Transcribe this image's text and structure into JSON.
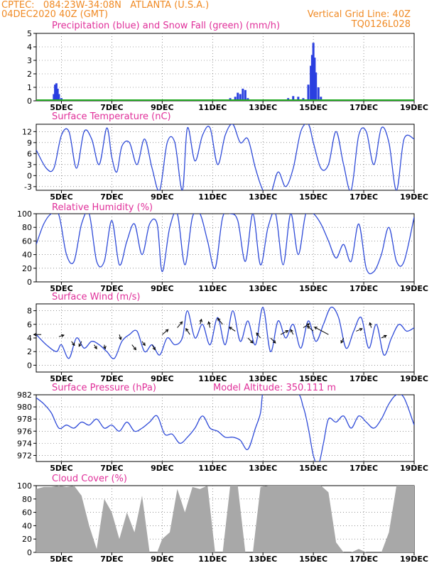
{
  "header": {
    "line1": "CPTEC:   084:23W-34:08N   ATLANTA (U.S.A.)",
    "line2": "04DEC2020 40Z (GMT)",
    "grid_note": "Vertical Grid Line: 40Z",
    "code": "TQ0126L028"
  },
  "x_axis": {
    "start_day": 4,
    "end_day": 19,
    "tick_labels": [
      "5DEC",
      "7DEC",
      "9DEC",
      "11DEC",
      "13DEC",
      "15DEC",
      "17DEC",
      "19DEC"
    ],
    "tick_days": [
      5,
      7,
      9,
      11,
      13,
      15,
      17,
      19
    ]
  },
  "colors": {
    "title": "#e0309a",
    "header": "#f08a24",
    "line": "#2f4bd8",
    "precip_bar": "#2a3fe0",
    "snow": "#22aa22",
    "cloud_fill": "#a8a8a8",
    "wind_arrow": "#000000"
  },
  "chart_data": [
    {
      "type": "bar",
      "title": "Precipitation (blue) and Snow Fall (green) (mm/h)",
      "ylim": [
        0,
        5
      ],
      "yticks": [
        0,
        1,
        2,
        3,
        4,
        5
      ],
      "series": [
        {
          "name": "Precipitation",
          "x": [
            4.6,
            4.7,
            4.75,
            4.8,
            4.85,
            4.9,
            5.0,
            11.7,
            11.9,
            12.0,
            12.1,
            12.2,
            12.3,
            12.4,
            14.0,
            14.2,
            14.4,
            14.6,
            14.8,
            14.9,
            14.95,
            15.0,
            15.05,
            15.1,
            15.2,
            15.3
          ],
          "values": [
            0.1,
            0.5,
            1.2,
            1.3,
            0.9,
            0.5,
            0.2,
            0.2,
            0.3,
            0.6,
            0.5,
            0.9,
            0.8,
            0.2,
            0.2,
            0.35,
            0.3,
            0.2,
            1.2,
            2.6,
            3.4,
            4.3,
            3.2,
            2.1,
            1.0,
            0.3
          ]
        },
        {
          "name": "Snow Fall",
          "x": [],
          "values": []
        }
      ]
    },
    {
      "type": "line",
      "title": "Surface Temperature (nC)",
      "ylim": [
        -4,
        14
      ],
      "yticks": [
        -3,
        0,
        3,
        6,
        9,
        12
      ],
      "x": [
        4.0,
        4.4,
        4.7,
        5.0,
        5.3,
        5.6,
        5.9,
        6.2,
        6.5,
        6.8,
        7.0,
        7.2,
        7.4,
        7.7,
        8.0,
        8.3,
        8.6,
        8.9,
        9.2,
        9.5,
        9.8,
        10.0,
        10.3,
        10.6,
        10.9,
        11.2,
        11.5,
        11.8,
        12.1,
        12.4,
        12.7,
        13.0,
        13.3,
        13.6,
        13.9,
        14.2,
        14.5,
        14.8,
        15.0,
        15.3,
        15.6,
        15.9,
        16.2,
        16.5,
        16.8,
        17.1,
        17.4,
        17.7,
        18.0,
        18.3,
        18.6,
        19.0
      ],
      "values": [
        7,
        2,
        2,
        11,
        12,
        2,
        12,
        10,
        3,
        13,
        5,
        1,
        8,
        9,
        3,
        10,
        2,
        -4,
        9,
        9,
        -4,
        13,
        4,
        11,
        13,
        3,
        11,
        14,
        9,
        10,
        2,
        -4,
        -5,
        1,
        -3,
        2,
        12,
        14,
        9,
        2,
        3,
        12,
        3,
        -4,
        11,
        12,
        3,
        13,
        9,
        -4,
        10,
        10
      ]
    },
    {
      "type": "line",
      "title": "Relative Humidity (%)",
      "ylim": [
        0,
        100
      ],
      "yticks": [
        0,
        20,
        40,
        60,
        80,
        100
      ],
      "x": [
        4.0,
        4.3,
        4.6,
        4.9,
        5.2,
        5.5,
        5.8,
        6.1,
        6.4,
        6.7,
        7.0,
        7.3,
        7.6,
        7.9,
        8.2,
        8.5,
        8.8,
        9.0,
        9.3,
        9.6,
        9.9,
        10.2,
        10.5,
        10.8,
        11.1,
        11.4,
        11.7,
        12.0,
        12.3,
        12.6,
        12.9,
        13.2,
        13.5,
        13.8,
        14.1,
        14.4,
        14.7,
        15.0,
        15.3,
        15.6,
        15.9,
        16.2,
        16.5,
        16.8,
        17.1,
        17.4,
        17.7,
        18.0,
        18.3,
        18.6,
        19.0
      ],
      "values": [
        55,
        85,
        100,
        98,
        40,
        30,
        85,
        100,
        30,
        30,
        90,
        25,
        60,
        85,
        40,
        85,
        85,
        15,
        80,
        100,
        25,
        95,
        100,
        60,
        20,
        95,
        100,
        90,
        30,
        100,
        25,
        80,
        100,
        25,
        100,
        40,
        100,
        100,
        85,
        60,
        35,
        55,
        30,
        85,
        20,
        15,
        40,
        80,
        30,
        30,
        95
      ]
    },
    {
      "type": "line",
      "title": "Surface Wind (m/s)",
      "ylim": [
        -1,
        9
      ],
      "yticks": [
        0,
        2,
        4,
        6,
        8
      ],
      "x": [
        4.0,
        4.4,
        4.8,
        5.0,
        5.3,
        5.6,
        5.9,
        6.2,
        6.5,
        6.8,
        7.1,
        7.4,
        7.7,
        8.0,
        8.3,
        8.6,
        8.9,
        9.2,
        9.5,
        9.8,
        10.0,
        10.3,
        10.6,
        10.9,
        11.2,
        11.5,
        11.8,
        12.1,
        12.4,
        12.7,
        13.0,
        13.3,
        13.6,
        13.9,
        14.2,
        14.5,
        14.8,
        15.1,
        15.4,
        15.7,
        16.0,
        16.3,
        16.6,
        16.9,
        17.2,
        17.5,
        17.8,
        18.1,
        18.4,
        18.7,
        19.0
      ],
      "values": [
        4.5,
        3.0,
        2.0,
        3.0,
        1.0,
        4.0,
        2.5,
        3.5,
        3.0,
        2.0,
        1.0,
        3.5,
        4.5,
        5.0,
        2.0,
        3.0,
        1.5,
        4.0,
        3.0,
        4.0,
        8.0,
        4.0,
        6.0,
        3.0,
        7.0,
        3.0,
        8.0,
        3.5,
        6.5,
        3.0,
        8.5,
        2.0,
        6.5,
        4.0,
        6.0,
        2.5,
        6.5,
        3.5,
        6.0,
        8.5,
        7.0,
        2.5,
        5.0,
        7.0,
        2.5,
        6.0,
        1.5,
        4.0,
        6.0,
        5.0,
        5.5
      ]
    },
    {
      "type": "line",
      "title": "Surface Pressure (hPa)",
      "subtitle": "Model Altitude: 350.111 m",
      "ylim": [
        971,
        982
      ],
      "yticks": [
        972,
        974,
        976,
        978,
        980,
        982
      ],
      "x": [
        4.0,
        4.3,
        4.6,
        4.9,
        5.2,
        5.5,
        5.8,
        6.1,
        6.4,
        6.7,
        7.0,
        7.3,
        7.6,
        7.9,
        8.2,
        8.5,
        8.8,
        9.1,
        9.4,
        9.7,
        10.0,
        10.3,
        10.6,
        10.9,
        11.2,
        11.5,
        11.8,
        12.1,
        12.4,
        12.7,
        12.9,
        13.0,
        13.2,
        14.3,
        14.6,
        14.8,
        15.0,
        15.2,
        15.4,
        15.6,
        15.9,
        16.2,
        16.5,
        16.8,
        17.1,
        17.4,
        17.7,
        18.0,
        18.3,
        18.6,
        19.0
      ],
      "values": [
        981.5,
        980.5,
        979.0,
        976.5,
        977.0,
        976.5,
        977.5,
        977.0,
        978.0,
        976.5,
        977.0,
        976.0,
        977.5,
        976.0,
        976.5,
        977.5,
        978.5,
        975.5,
        975.5,
        974.0,
        975.0,
        976.5,
        978.5,
        976.5,
        976.0,
        975.0,
        975.0,
        974.5,
        973.0,
        976.5,
        979.0,
        982.5,
        983.0,
        982.5,
        980.0,
        976.5,
        972.0,
        970.5,
        974.0,
        978.0,
        977.5,
        978.5,
        976.5,
        978.5,
        977.5,
        976.5,
        978.0,
        980.5,
        982.0,
        981.5,
        977.0
      ]
    },
    {
      "type": "area",
      "title": "Cloud Cover (%)",
      "ylim": [
        0,
        100
      ],
      "yticks": [
        0,
        20,
        40,
        60,
        80,
        100
      ],
      "x": [
        4.0,
        4.3,
        4.6,
        4.9,
        5.2,
        5.5,
        5.8,
        6.1,
        6.4,
        6.7,
        7.0,
        7.3,
        7.6,
        7.9,
        8.2,
        8.5,
        8.8,
        9.0,
        9.3,
        9.6,
        9.9,
        10.2,
        10.5,
        10.8,
        11.1,
        11.4,
        11.7,
        12.0,
        12.3,
        12.6,
        12.9,
        13.2,
        13.5,
        13.8,
        14.1,
        14.4,
        14.7,
        15.0,
        15.3,
        15.6,
        15.9,
        16.2,
        16.5,
        16.8,
        17.1,
        17.4,
        17.7,
        18.0,
        18.3,
        18.6,
        19.0
      ],
      "values": [
        95,
        98,
        98,
        100,
        98,
        100,
        85,
        40,
        5,
        80,
        60,
        20,
        60,
        30,
        85,
        0,
        0,
        20,
        30,
        95,
        60,
        98,
        95,
        100,
        0,
        0,
        100,
        100,
        0,
        0,
        98,
        100,
        100,
        100,
        100,
        100,
        100,
        100,
        100,
        90,
        15,
        0,
        0,
        5,
        0,
        0,
        0,
        30,
        100,
        100,
        100
      ]
    }
  ],
  "wind_vectors": {
    "x": [
      4.2,
      4.9,
      5.4,
      5.8,
      6.3,
      6.7,
      7.3,
      7.8,
      8.2,
      8.6,
      9.0,
      9.6,
      10.1,
      10.5,
      10.9,
      11.4,
      11.9,
      12.4,
      12.9,
      13.3,
      13.7,
      14.2,
      14.6,
      15.0,
      15.6,
      16.2,
      16.7,
      17.3,
      17.7
    ],
    "y": [
      4.5,
      4.2,
      3.5,
      3.5,
      3.0,
      3.0,
      4.5,
      3.0,
      3.5,
      3.0,
      4.5,
      5.5,
      4.5,
      6.0,
      5.5,
      6.0,
      5.0,
      4.0,
      4.0,
      4.0,
      4.5,
      4.5,
      5.5,
      5.0,
      4.5,
      4.0,
      5.0,
      5.5,
      4.0
    ],
    "u": [
      -1.5,
      1.0,
      0.6,
      -0.5,
      0.5,
      0.2,
      0.3,
      0.8,
      0.6,
      0.6,
      1.2,
      1.0,
      -0.8,
      0.3,
      -0.3,
      -1.0,
      -1.2,
      1.0,
      -0.8,
      1.0,
      1.5,
      -0.5,
      1.2,
      -1.2,
      -2.8,
      -0.5,
      1.2,
      -0.3,
      1.0
    ],
    "v": [
      0.0,
      0.3,
      -0.8,
      -1.0,
      -0.8,
      -0.8,
      -1.0,
      -1.0,
      -0.8,
      -1.0,
      1.0,
      1.2,
      1.2,
      1.0,
      1.2,
      1.2,
      0.8,
      -1.0,
      1.0,
      -1.0,
      0.8,
      1.0,
      0.8,
      1.0,
      1.5,
      -1.0,
      0.5,
      1.0,
      0.5
    ]
  }
}
